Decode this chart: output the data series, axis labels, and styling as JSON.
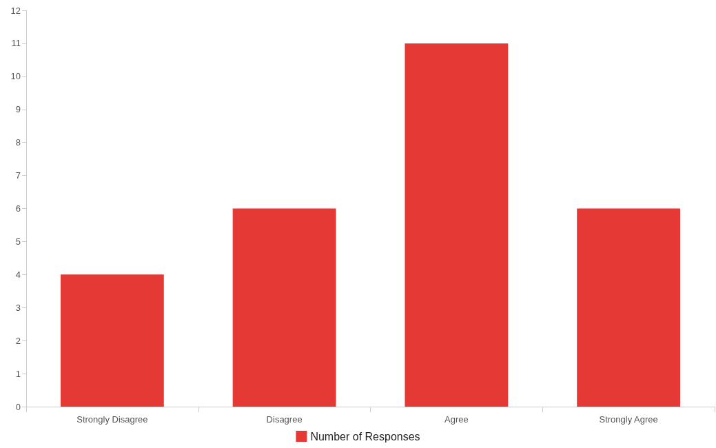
{
  "chart_data": {
    "type": "bar",
    "categories": [
      "Strongly Disagree",
      "Disagree",
      "Agree",
      "Strongly Agree"
    ],
    "series": [
      {
        "name": "Number of Responses",
        "color": "#e53935",
        "values": [
          4,
          6,
          11,
          6
        ]
      }
    ],
    "ylim": [
      0,
      12
    ],
    "yticks": [
      0,
      1,
      2,
      3,
      4,
      5,
      6,
      7,
      8,
      9,
      10,
      11,
      12
    ],
    "grid": false,
    "legend": "bottom"
  }
}
